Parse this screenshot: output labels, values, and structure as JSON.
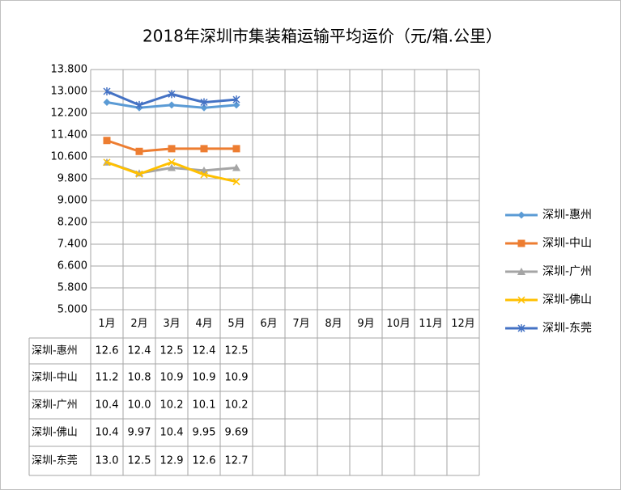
{
  "chart_data": {
    "type": "line",
    "title": "2018年深圳市集装箱运输平均运价（元/箱.公里）",
    "categories": [
      "1月",
      "2月",
      "3月",
      "4月",
      "5月",
      "6月",
      "7月",
      "8月",
      "9月",
      "10月",
      "11月",
      "12月"
    ],
    "series": [
      {
        "name": "深圳-惠州",
        "color": "#5B9BD5",
        "marker": "diamond",
        "values": [
          12.6,
          12.4,
          12.5,
          12.4,
          12.5,
          null,
          null,
          null,
          null,
          null,
          null,
          null
        ],
        "value_labels": [
          "12.6",
          "12.4",
          "12.5",
          "12.4",
          "12.5",
          null,
          null,
          null,
          null,
          null,
          null,
          null
        ]
      },
      {
        "name": "深圳-中山",
        "color": "#ED7D31",
        "marker": "square",
        "values": [
          11.2,
          10.8,
          10.9,
          10.9,
          10.9,
          null,
          null,
          null,
          null,
          null,
          null,
          null
        ],
        "value_labels": [
          "11.2",
          "10.8",
          "10.9",
          "10.9",
          "10.9",
          null,
          null,
          null,
          null,
          null,
          null,
          null
        ]
      },
      {
        "name": "深圳-广州",
        "color": "#A5A5A5",
        "marker": "triangle",
        "values": [
          10.4,
          10.0,
          10.2,
          10.1,
          10.2,
          null,
          null,
          null,
          null,
          null,
          null,
          null
        ],
        "value_labels": [
          "10.4",
          "10.0",
          "10.2",
          "10.1",
          "10.2",
          null,
          null,
          null,
          null,
          null,
          null,
          null
        ]
      },
      {
        "name": "深圳-佛山",
        "color": "#FFC000",
        "marker": "x",
        "values": [
          10.4,
          9.97,
          10.4,
          9.95,
          9.69,
          null,
          null,
          null,
          null,
          null,
          null,
          null
        ],
        "value_labels": [
          "10.4",
          "9.97",
          "10.4",
          "9.95",
          "9.69",
          null,
          null,
          null,
          null,
          null,
          null,
          null
        ]
      },
      {
        "name": "深圳-东莞",
        "color": "#4472C4",
        "marker": "star",
        "values": [
          13.0,
          12.5,
          12.9,
          12.6,
          12.7,
          null,
          null,
          null,
          null,
          null,
          null,
          null
        ],
        "value_labels": [
          "13.0",
          "12.5",
          "12.9",
          "12.6",
          "12.7",
          null,
          null,
          null,
          null,
          null,
          null,
          null
        ]
      }
    ],
    "ylim": [
      5,
      13.8
    ],
    "yticks": [
      {
        "value": 5,
        "label": "5.000"
      },
      {
        "value": 5.8,
        "label": "5.800"
      },
      {
        "value": 6.6,
        "label": "6.600"
      },
      {
        "value": 7.4,
        "label": "7.400"
      },
      {
        "value": 8.2,
        "label": "8.200"
      },
      {
        "value": 9,
        "label": "9.000"
      },
      {
        "value": 9.8,
        "label": "9.800"
      },
      {
        "value": 10.6,
        "label": "10.600"
      },
      {
        "value": 11.4,
        "label": "11.400"
      },
      {
        "value": 12.2,
        "label": "12.200"
      },
      {
        "value": 13,
        "label": "13.000"
      },
      {
        "value": 13.8,
        "label": "13.800"
      }
    ],
    "grid": true,
    "legend": "right",
    "data_table": true
  }
}
